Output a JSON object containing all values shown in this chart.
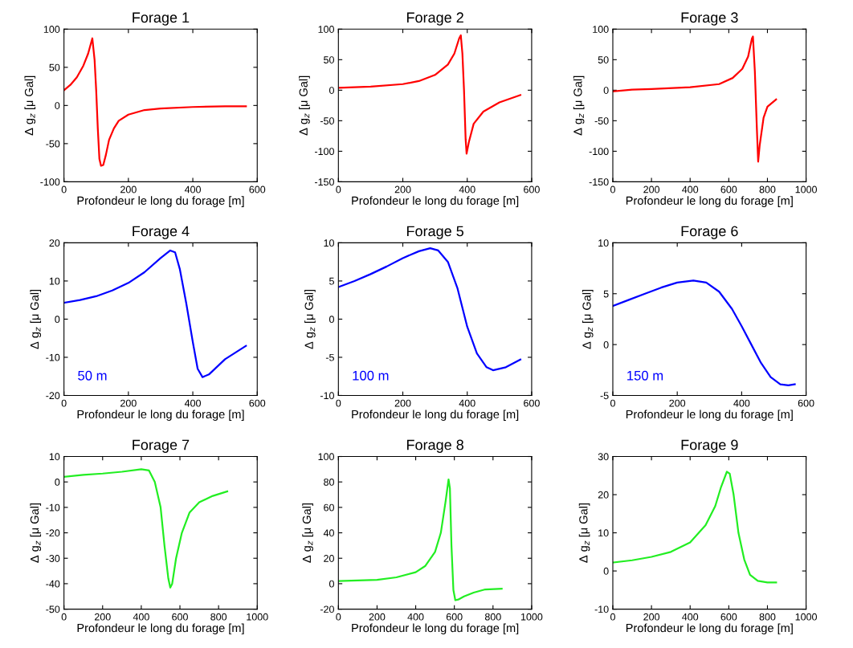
{
  "chart_data": [
    {
      "type": "line",
      "title": "Forage 1",
      "xlabel": "Profondeur le long du forage [m]",
      "ylabel": "Δ g$_{z}$ [μ Gal]",
      "xlim": [
        0,
        600
      ],
      "xticks": [
        0,
        200,
        400,
        600
      ],
      "ylim": [
        -100,
        100
      ],
      "yticks": [
        -100,
        -50,
        0,
        50,
        100
      ],
      "series": [
        {
          "color": "#ff0000",
          "x": [
            0,
            20,
            40,
            60,
            75,
            88,
            95,
            100,
            105,
            110,
            115,
            122,
            130,
            140,
            155,
            170,
            200,
            250,
            300,
            400,
            500,
            565
          ],
          "values": [
            20,
            27,
            37,
            52,
            68,
            88,
            60,
            20,
            -30,
            -70,
            -79,
            -78,
            -65,
            -45,
            -30,
            -20,
            -12,
            -6,
            -4,
            -2,
            -1,
            -1
          ]
        }
      ]
    },
    {
      "type": "line",
      "title": "Forage 2",
      "xlabel": "Profondeur le long du forage [m]",
      "ylabel": "Δ g$_{z}$ [μ Gal]",
      "xlim": [
        0,
        600
      ],
      "xticks": [
        0,
        200,
        400,
        600
      ],
      "ylim": [
        -150,
        100
      ],
      "yticks": [
        -150,
        -100,
        -50,
        0,
        50,
        100
      ],
      "series": [
        {
          "color": "#ff0000",
          "x": [
            0,
            100,
            200,
            250,
            300,
            340,
            360,
            375,
            380,
            385,
            390,
            395,
            398,
            405,
            420,
            450,
            500,
            565
          ],
          "values": [
            4,
            6,
            10,
            15,
            25,
            42,
            60,
            85,
            90,
            60,
            0,
            -80,
            -104,
            -85,
            -55,
            -35,
            -20,
            -8
          ]
        }
      ]
    },
    {
      "type": "line",
      "title": "Forage 3",
      "xlabel": "Profondeur le long du forage [m]",
      "ylabel": "Δ g$_{z}$ [μ Gal]",
      "xlim": [
        0,
        1000
      ],
      "xticks": [
        0,
        200,
        400,
        600,
        800,
        1000
      ],
      "ylim": [
        -150,
        100
      ],
      "yticks": [
        -150,
        -100,
        -50,
        0,
        50,
        100
      ],
      "series": [
        {
          "color": "#ff0000",
          "x": [
            0,
            100,
            200,
            400,
            550,
            620,
            670,
            700,
            720,
            725,
            735,
            745,
            752,
            760,
            780,
            800,
            845
          ],
          "values": [
            -2,
            1,
            2,
            5,
            10,
            20,
            35,
            55,
            85,
            88,
            30,
            -60,
            -117,
            -90,
            -45,
            -27,
            -15
          ]
        }
      ]
    },
    {
      "type": "line",
      "title": "Forage 4",
      "xlabel": "Profondeur le long du forage [m]",
      "ylabel": "Δ g$_{z}$ [μ Gal]",
      "xlim": [
        0,
        600
      ],
      "xticks": [
        0,
        200,
        400,
        600
      ],
      "ylim": [
        -20,
        20
      ],
      "yticks": [
        -20,
        -10,
        0,
        10,
        20
      ],
      "annotations": [
        "50 m"
      ],
      "series": [
        {
          "color": "#0000ff",
          "x": [
            0,
            50,
            100,
            150,
            200,
            250,
            300,
            330,
            345,
            360,
            380,
            400,
            415,
            430,
            450,
            500,
            565
          ],
          "values": [
            4.3,
            5,
            6,
            7.5,
            9.5,
            12.3,
            16,
            18,
            17.5,
            13,
            4,
            -6,
            -13,
            -15.2,
            -14.5,
            -10.5,
            -7
          ]
        }
      ]
    },
    {
      "type": "line",
      "title": "Forage 5",
      "xlabel": "Profondeur le long du forage [m]",
      "ylabel": "Δ g$_{z}$ [μ Gal]",
      "xlim": [
        0,
        600
      ],
      "xticks": [
        0,
        200,
        400,
        600
      ],
      "ylim": [
        -10,
        10
      ],
      "yticks": [
        -10,
        -5,
        0,
        5,
        10
      ],
      "annotations": [
        "100 m"
      ],
      "series": [
        {
          "color": "#0000ff",
          "x": [
            0,
            50,
            100,
            150,
            200,
            250,
            285,
            310,
            340,
            370,
            400,
            430,
            460,
            480,
            520,
            565
          ],
          "values": [
            4.2,
            5,
            5.9,
            6.9,
            8,
            8.9,
            9.3,
            9,
            7.5,
            4,
            -1,
            -4.5,
            -6.3,
            -6.7,
            -6.3,
            -5.3
          ]
        }
      ]
    },
    {
      "type": "line",
      "title": "Forage 6",
      "xlabel": "Profondeur le long du forage [m]",
      "ylabel": "Δ g$_{z}$ [μ Gal]",
      "xlim": [
        0,
        600
      ],
      "xticks": [
        0,
        200,
        400,
        600
      ],
      "ylim": [
        -5,
        10
      ],
      "yticks": [
        -5,
        0,
        5,
        10
      ],
      "annotations": [
        "150 m"
      ],
      "series": [
        {
          "color": "#0000ff",
          "x": [
            0,
            50,
            100,
            150,
            200,
            250,
            290,
            330,
            370,
            400,
            430,
            460,
            490,
            520,
            545,
            565
          ],
          "values": [
            3.8,
            4.4,
            5,
            5.6,
            6.1,
            6.3,
            6.1,
            5.2,
            3.5,
            1.8,
            0,
            -1.8,
            -3.2,
            -3.9,
            -4,
            -3.9
          ]
        }
      ]
    },
    {
      "type": "line",
      "title": "Forage 7",
      "xlabel": "Profondeur le long du forage [m]",
      "ylabel": "Δ g$_{z}$ [μ Gal]",
      "xlim": [
        0,
        1000
      ],
      "xticks": [
        0,
        200,
        400,
        600,
        800,
        1000
      ],
      "ylim": [
        -50,
        10
      ],
      "yticks": [
        -50,
        -40,
        -30,
        -20,
        -10,
        0,
        10
      ],
      "series": [
        {
          "color": "#22ee22",
          "x": [
            0,
            100,
            200,
            300,
            400,
            440,
            470,
            500,
            520,
            540,
            550,
            560,
            580,
            610,
            650,
            700,
            770,
            845
          ],
          "values": [
            2,
            2.8,
            3.3,
            4,
            5,
            4.5,
            0,
            -10,
            -25,
            -38,
            -41.5,
            -40,
            -30,
            -20,
            -12,
            -8,
            -5.5,
            -3.7
          ]
        }
      ]
    },
    {
      "type": "line",
      "title": "Forage 8",
      "xlabel": "Profondeur le long du forage [m]",
      "ylabel": "Δ g$_{z}$ [μ Gal]",
      "xlim": [
        0,
        1000
      ],
      "xticks": [
        0,
        200,
        400,
        600,
        800,
        1000
      ],
      "ylim": [
        -20,
        100
      ],
      "yticks": [
        -20,
        0,
        20,
        40,
        60,
        80,
        100
      ],
      "series": [
        {
          "color": "#22ee22",
          "x": [
            0,
            200,
            300,
            400,
            450,
            500,
            530,
            555,
            570,
            577,
            585,
            595,
            605,
            620,
            650,
            700,
            760,
            845
          ],
          "values": [
            2,
            3,
            5,
            9,
            14,
            25,
            40,
            65,
            82,
            75,
            30,
            -5,
            -13,
            -12.5,
            -10,
            -7,
            -4.5,
            -4
          ]
        }
      ]
    },
    {
      "type": "line",
      "title": "Forage 9",
      "xlabel": "Profondeur le long du forage [m]",
      "ylabel": "Δ g$_{z}$ [μ Gal]",
      "xlim": [
        0,
        1000
      ],
      "xticks": [
        0,
        200,
        400,
        600,
        800,
        1000
      ],
      "ylim": [
        -10,
        30
      ],
      "yticks": [
        -10,
        0,
        10,
        20,
        30
      ],
      "series": [
        {
          "color": "#22ee22",
          "x": [
            0,
            100,
            200,
            300,
            400,
            480,
            530,
            560,
            590,
            605,
            625,
            650,
            680,
            710,
            750,
            800,
            845
          ],
          "values": [
            2.2,
            2.8,
            3.7,
            5,
            7.5,
            12,
            17,
            22,
            26,
            25.5,
            20,
            10,
            3,
            -1,
            -2.6,
            -3,
            -3
          ]
        }
      ]
    }
  ]
}
